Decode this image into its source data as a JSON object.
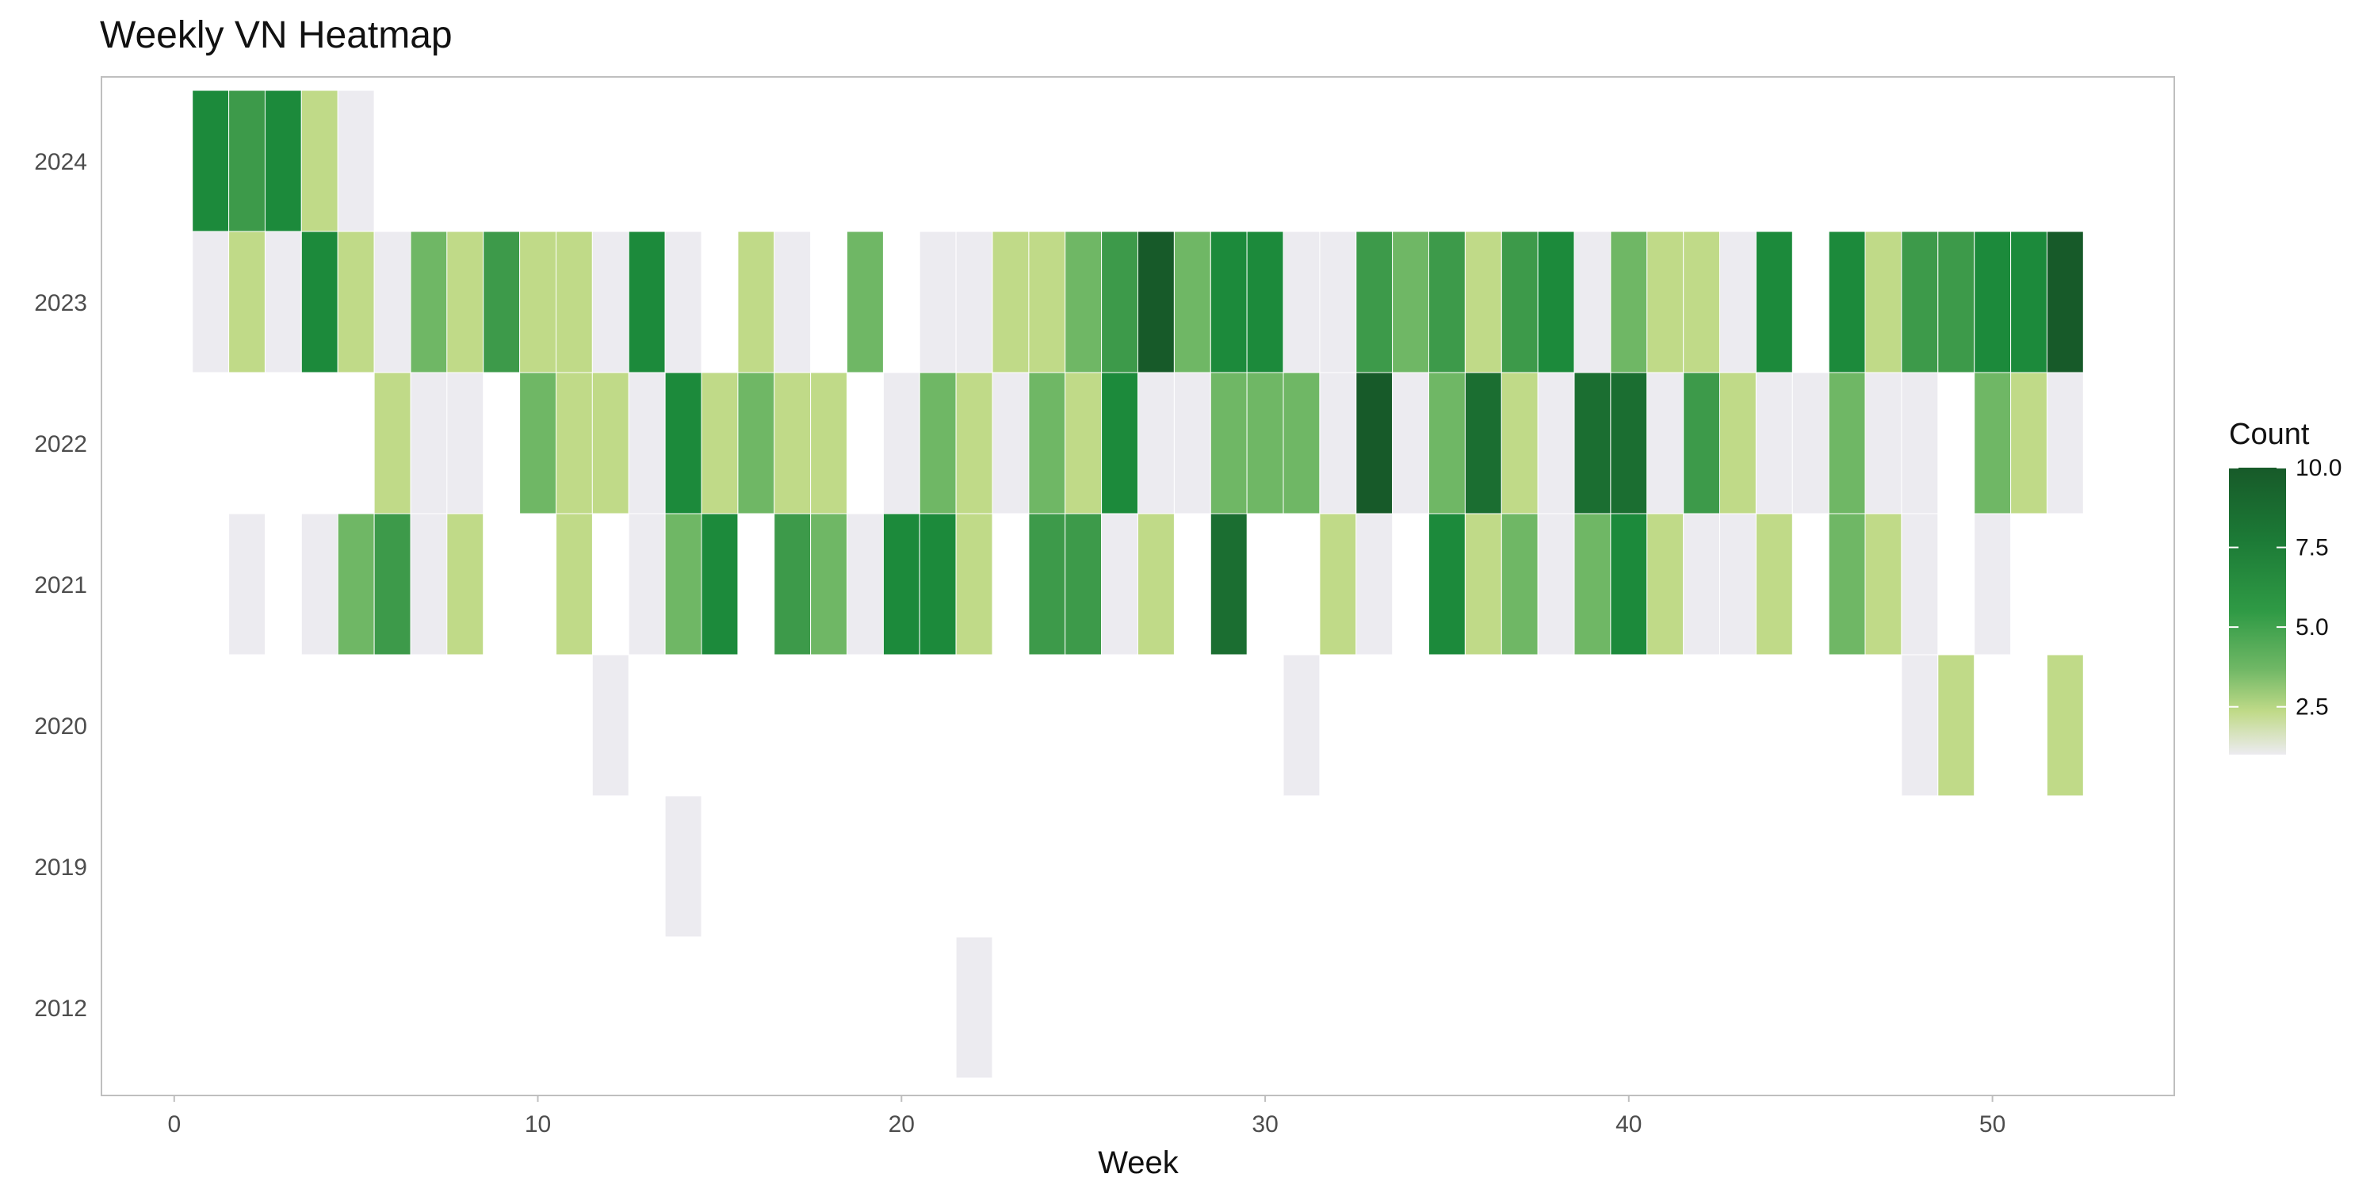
{
  "chart_data": {
    "type": "heatmap",
    "title": "Weekly VN Heatmap",
    "xlabel": "Week",
    "ylabel": "",
    "xlim": [
      -2,
      55
    ],
    "x_ticks": [
      "0",
      "10",
      "20",
      "30",
      "40",
      "50"
    ],
    "y_categories": [
      "2024",
      "2023",
      "2022",
      "2021",
      "2020",
      "2019",
      "2012"
    ],
    "legend": {
      "title": "Count",
      "position": "right",
      "range": [
        1,
        10
      ],
      "ticks": [
        "2.5",
        "5.0",
        "7.5",
        "10.0"
      ]
    },
    "colors": {
      "low": "#ecebf0",
      "light": "#c0da88",
      "mid": "#6fb765",
      "midhigh": "#3d9a4a",
      "high": "#1c8a3b",
      "max": "#175a29",
      "panel_border": "#bfbfbf",
      "background": "#ffffff"
    },
    "grid": false,
    "cells": [
      {
        "year": "2024",
        "data": [
          [
            1,
            5
          ],
          [
            2,
            4
          ],
          [
            3,
            5
          ],
          [
            4,
            2
          ],
          [
            5,
            1
          ]
        ]
      },
      {
        "year": "2023",
        "data": [
          [
            1,
            1
          ],
          [
            2,
            2
          ],
          [
            3,
            1
          ],
          [
            4,
            5
          ],
          [
            5,
            2
          ],
          [
            6,
            1
          ],
          [
            7,
            3
          ],
          [
            8,
            2
          ],
          [
            9,
            4
          ],
          [
            10,
            2
          ],
          [
            11,
            2
          ],
          [
            12,
            1
          ],
          [
            13,
            6
          ],
          [
            14,
            1
          ],
          [
            16,
            2
          ],
          [
            17,
            1
          ],
          [
            19,
            3
          ],
          [
            21,
            1
          ],
          [
            22,
            1
          ],
          [
            23,
            2
          ],
          [
            24,
            2
          ],
          [
            25,
            3
          ],
          [
            26,
            4
          ],
          [
            27,
            10
          ],
          [
            28,
            3
          ],
          [
            29,
            6
          ],
          [
            30,
            5
          ],
          [
            31,
            1
          ],
          [
            32,
            1
          ],
          [
            33,
            4
          ],
          [
            34,
            3
          ],
          [
            35,
            4
          ],
          [
            36,
            2
          ],
          [
            37,
            4
          ],
          [
            38,
            6
          ],
          [
            39,
            1
          ],
          [
            40,
            3
          ],
          [
            41,
            2
          ],
          [
            42,
            2
          ],
          [
            43,
            1
          ],
          [
            44,
            5
          ],
          [
            46,
            5
          ],
          [
            47,
            2
          ],
          [
            48,
            4
          ],
          [
            49,
            4
          ],
          [
            50,
            6
          ],
          [
            51,
            5
          ],
          [
            52,
            10
          ]
        ]
      },
      {
        "year": "2022",
        "data": [
          [
            6,
            2
          ],
          [
            7,
            1
          ],
          [
            8,
            1
          ],
          [
            10,
            3
          ],
          [
            11,
            2
          ],
          [
            12,
            2
          ],
          [
            13,
            1
          ],
          [
            14,
            5
          ],
          [
            15,
            2
          ],
          [
            16,
            3
          ],
          [
            17,
            2
          ],
          [
            18,
            2
          ],
          [
            20,
            1
          ],
          [
            21,
            3
          ],
          [
            22,
            2
          ],
          [
            23,
            1
          ],
          [
            24,
            3
          ],
          [
            25,
            2
          ],
          [
            26,
            5
          ],
          [
            27,
            1
          ],
          [
            28,
            1
          ],
          [
            29,
            3
          ],
          [
            30,
            3
          ],
          [
            31,
            3
          ],
          [
            32,
            1
          ],
          [
            33,
            10
          ],
          [
            34,
            1
          ],
          [
            35,
            3
          ],
          [
            36,
            8
          ],
          [
            37,
            2
          ],
          [
            38,
            1
          ],
          [
            39,
            7
          ],
          [
            40,
            7
          ],
          [
            41,
            1
          ],
          [
            42,
            4
          ],
          [
            43,
            2
          ],
          [
            44,
            1
          ],
          [
            45,
            1
          ],
          [
            46,
            3
          ],
          [
            47,
            1
          ],
          [
            48,
            1
          ],
          [
            50,
            3
          ],
          [
            51,
            2
          ],
          [
            52,
            1
          ]
        ]
      },
      {
        "year": "2021",
        "data": [
          [
            2,
            1
          ],
          [
            4,
            1
          ],
          [
            5,
            3
          ],
          [
            6,
            4
          ],
          [
            7,
            1
          ],
          [
            8,
            2
          ],
          [
            11,
            2
          ],
          [
            13,
            1
          ],
          [
            14,
            3
          ],
          [
            15,
            5
          ],
          [
            17,
            4
          ],
          [
            18,
            3
          ],
          [
            19,
            1
          ],
          [
            20,
            5
          ],
          [
            21,
            5
          ],
          [
            22,
            2
          ],
          [
            24,
            4
          ],
          [
            25,
            4
          ],
          [
            26,
            1
          ],
          [
            27,
            2
          ],
          [
            29,
            8
          ],
          [
            32,
            2
          ],
          [
            33,
            1
          ],
          [
            35,
            5
          ],
          [
            36,
            2
          ],
          [
            37,
            3
          ],
          [
            38,
            1
          ],
          [
            39,
            3
          ],
          [
            40,
            5
          ],
          [
            41,
            2
          ],
          [
            42,
            1
          ],
          [
            43,
            1
          ],
          [
            44,
            2
          ],
          [
            46,
            3
          ],
          [
            47,
            2
          ],
          [
            48,
            1
          ],
          [
            50,
            1
          ]
        ]
      },
      {
        "year": "2020",
        "data": [
          [
            12,
            1
          ],
          [
            31,
            1
          ],
          [
            48,
            1
          ],
          [
            49,
            2
          ],
          [
            52,
            2
          ]
        ]
      },
      {
        "year": "2019",
        "data": [
          [
            14,
            1
          ]
        ]
      },
      {
        "year": "2012",
        "data": [
          [
            22,
            1
          ]
        ]
      }
    ]
  }
}
